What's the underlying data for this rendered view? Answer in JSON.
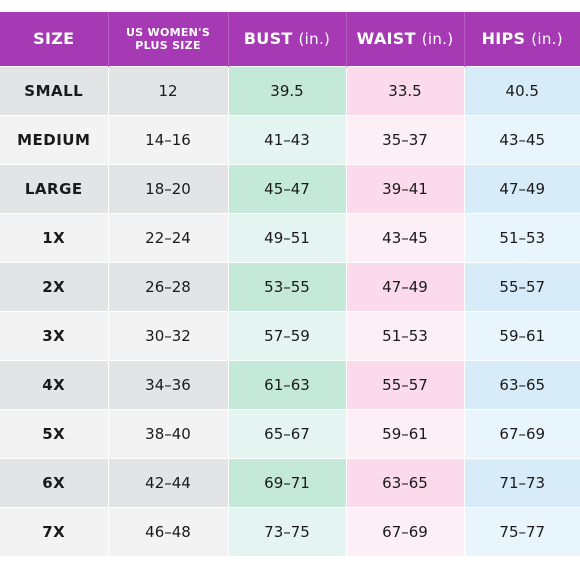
{
  "header": {
    "size": "SIZE",
    "us_line1": "US WOMEN'S",
    "us_line2": "PLUS SIZE",
    "bust": "BUST",
    "waist": "WAIST",
    "hips": "HIPS",
    "unit": "(in.)"
  },
  "rows": [
    {
      "size": "SMALL",
      "us": "12",
      "bust": "39.5",
      "waist": "33.5",
      "hips": "40.5"
    },
    {
      "size": "MEDIUM",
      "us": "14–16",
      "bust": "41–43",
      "waist": "35–37",
      "hips": "43–45"
    },
    {
      "size": "LARGE",
      "us": "18–20",
      "bust": "45–47",
      "waist": "39–41",
      "hips": "47–49"
    },
    {
      "size": "1X",
      "us": "22–24",
      "bust": "49–51",
      "waist": "43–45",
      "hips": "51–53"
    },
    {
      "size": "2X",
      "us": "26–28",
      "bust": "53–55",
      "waist": "47–49",
      "hips": "55–57"
    },
    {
      "size": "3X",
      "us": "30–32",
      "bust": "57–59",
      "waist": "51–53",
      "hips": "59–61"
    },
    {
      "size": "4X",
      "us": "34–36",
      "bust": "61–63",
      "waist": "55–57",
      "hips": "63–65"
    },
    {
      "size": "5X",
      "us": "38–40",
      "bust": "65–67",
      "waist": "59–61",
      "hips": "67–69"
    },
    {
      "size": "6X",
      "us": "42–44",
      "bust": "69–71",
      "waist": "63–65",
      "hips": "71–73"
    },
    {
      "size": "7X",
      "us": "46–48",
      "bust": "73–75",
      "waist": "67–69",
      "hips": "75–77"
    }
  ],
  "colors": {
    "header": "#a63ab4",
    "bust": "#c4e9d8",
    "waist": "#fbdbeb",
    "hips": "#d7ebf8"
  }
}
